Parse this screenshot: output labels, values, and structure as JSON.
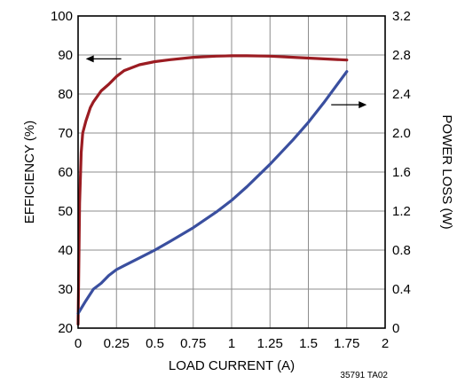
{
  "chart_data": {
    "type": "line",
    "xlabel": "LOAD CURRENT (A)",
    "ylabel_left": "EFFICIENCY (%)",
    "ylabel_right": "POWER LOSS (W)",
    "note": "35791 TA02",
    "x_ticks": [
      "0",
      "0.25",
      "0.5",
      "0.75",
      "1",
      "1.25",
      "1.5",
      "1.75",
      "2"
    ],
    "y_left_ticks": [
      "20",
      "30",
      "40",
      "50",
      "60",
      "70",
      "80",
      "90",
      "100"
    ],
    "y_right_ticks": [
      "0",
      "0.4",
      "0.8",
      "1.2",
      "1.6",
      "2.0",
      "2.4",
      "2.8",
      "3.2"
    ],
    "xlim": [
      0,
      2
    ],
    "ylim_left": [
      20,
      100
    ],
    "ylim_right": [
      0,
      3.2
    ],
    "grid": true,
    "series": [
      {
        "axis": "left",
        "color": "#9b1c22",
        "arrow": "left",
        "x": [
          0,
          0.01,
          0.02,
          0.03,
          0.05,
          0.08,
          0.1,
          0.15,
          0.2,
          0.25,
          0.3,
          0.4,
          0.5,
          0.6,
          0.75,
          0.9,
          1.0,
          1.1,
          1.25,
          1.4,
          1.5,
          1.6,
          1.75
        ],
        "y": [
          21,
          52,
          65,
          70,
          73,
          76.5,
          78,
          80.8,
          82.5,
          84.5,
          86,
          87.5,
          88.3,
          88.8,
          89.4,
          89.7,
          89.8,
          89.8,
          89.7,
          89.4,
          89.2,
          89.0,
          88.7
        ]
      },
      {
        "axis": "right",
        "color": "#3a4f9f",
        "arrow": "right",
        "x": [
          0,
          0.05,
          0.1,
          0.15,
          0.2,
          0.25,
          0.3,
          0.4,
          0.5,
          0.6,
          0.75,
          0.9,
          1.0,
          1.1,
          1.25,
          1.4,
          1.5,
          1.6,
          1.75
        ],
        "y": [
          0.15,
          0.28,
          0.4,
          0.46,
          0.54,
          0.6,
          0.64,
          0.72,
          0.8,
          0.89,
          1.03,
          1.19,
          1.31,
          1.45,
          1.68,
          1.93,
          2.11,
          2.31,
          2.63
        ]
      }
    ]
  }
}
